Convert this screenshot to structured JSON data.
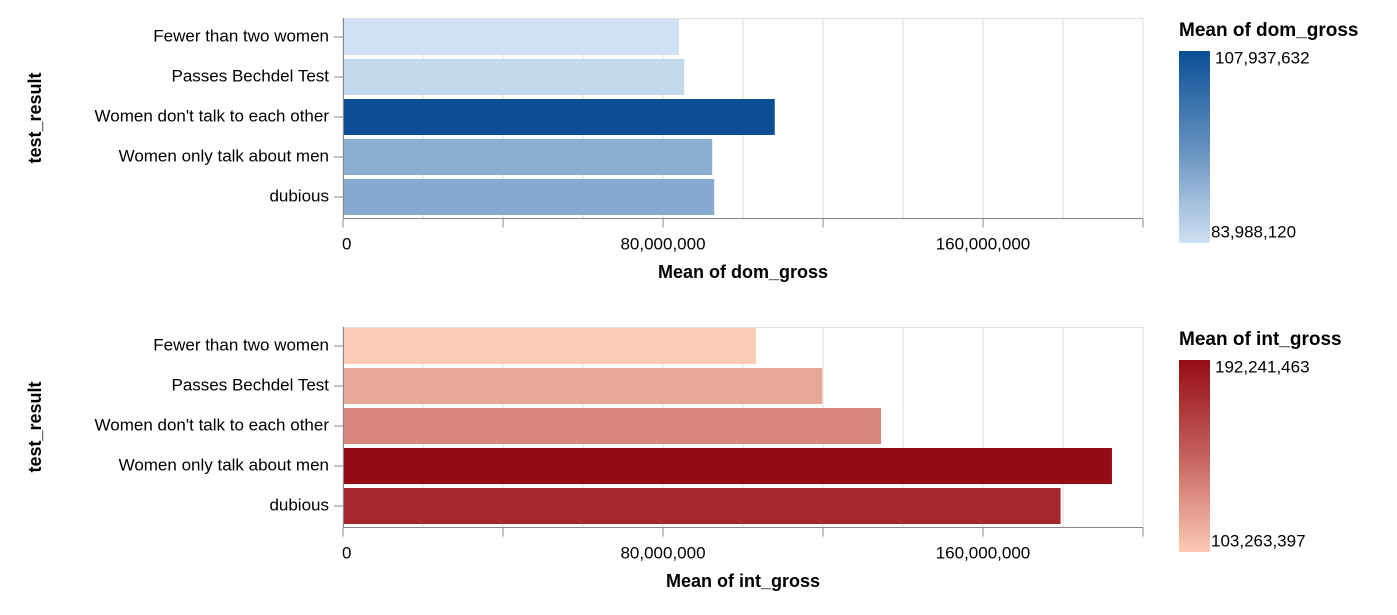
{
  "chart_data": [
    {
      "type": "bar",
      "orientation": "horizontal",
      "categories": [
        "Fewer than two women",
        "Passes Bechdel Test",
        "Women don't talk to each other",
        "Women only talk about men",
        "dubious"
      ],
      "values": [
        83988120,
        85300000,
        107937632,
        92300000,
        92800000
      ],
      "xlabel": "Mean of dom_gross",
      "ylabel": "test_result",
      "xlim": [
        0,
        200000000
      ],
      "xticks": [
        0,
        80000000,
        160000000
      ],
      "xtick_labels": [
        "0",
        "80,000,000",
        "160,000,000"
      ],
      "grid": true,
      "color_scheme": "blues",
      "color_min": "#cfe1f2",
      "color_max": "#0b4e95",
      "legend": {
        "title": "Mean of dom_gross",
        "max_label": "107,937,632",
        "min_label": "83,988,120",
        "max_value": 107937632,
        "min_value": 83988120,
        "placement": "right"
      }
    },
    {
      "type": "bar",
      "orientation": "horizontal",
      "categories": [
        "Fewer than two women",
        "Passes Bechdel Test",
        "Women don't talk to each other",
        "Women only talk about men",
        "dubious"
      ],
      "values": [
        103263397,
        119800000,
        134500000,
        192241463,
        179400000
      ],
      "xlabel": "Mean of int_gross",
      "ylabel": "test_result",
      "xlim": [
        0,
        200000000
      ],
      "xticks": [
        0,
        80000000,
        160000000
      ],
      "xtick_labels": [
        "0",
        "80,000,000",
        "160,000,000"
      ],
      "grid": true,
      "color_scheme": "reds",
      "color_min": "#fccab5",
      "color_max": "#960c15",
      "legend": {
        "title": "Mean of int_gross",
        "max_label": "192,241,463",
        "min_label": "103,263,397",
        "max_value": 192241463,
        "min_value": 103263397,
        "placement": "right"
      }
    }
  ]
}
